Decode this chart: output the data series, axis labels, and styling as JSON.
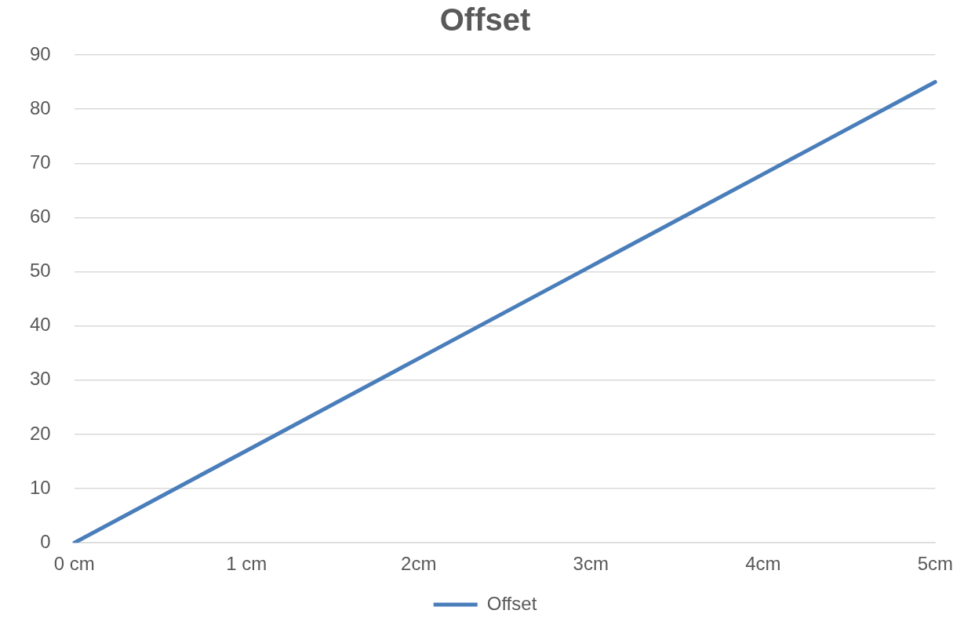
{
  "chart_data": {
    "type": "line",
    "title": "Offset",
    "categories": [
      "0 cm",
      "1 cm",
      "2cm",
      "3cm",
      "4cm",
      "5cm"
    ],
    "series": [
      {
        "name": "Offset",
        "color": "#4a7ebb",
        "values": [
          0,
          17,
          34,
          51,
          68,
          85
        ]
      }
    ],
    "ylim": [
      0,
      90
    ],
    "yticks": [
      0,
      10,
      20,
      30,
      40,
      50,
      60,
      70,
      80,
      90
    ],
    "grid": "y",
    "legend": "bottom"
  }
}
